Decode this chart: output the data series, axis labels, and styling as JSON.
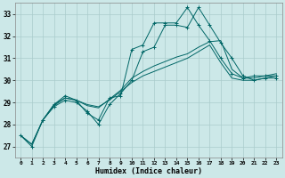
{
  "xlabel": "Humidex (Indice chaleur)",
  "bg_color": "#cce8e8",
  "grid_color": "#aacccc",
  "line_color": "#006666",
  "xlim": [
    -0.5,
    23.5
  ],
  "ylim": [
    26.5,
    33.5
  ],
  "xticks": [
    0,
    1,
    2,
    3,
    4,
    5,
    6,
    7,
    8,
    9,
    10,
    11,
    12,
    13,
    14,
    15,
    16,
    17,
    18,
    19,
    20,
    21,
    22,
    23
  ],
  "yticks": [
    27,
    28,
    29,
    30,
    31,
    32,
    33
  ],
  "series": [
    {
      "x": [
        0,
        1,
        2,
        3,
        4,
        5,
        6,
        7,
        8,
        9,
        10,
        11,
        12,
        13,
        14,
        15,
        16,
        17,
        18,
        19,
        20,
        21,
        22,
        23
      ],
      "y": [
        27.5,
        27.0,
        28.2,
        28.9,
        29.3,
        29.1,
        28.5,
        28.2,
        29.2,
        29.3,
        31.4,
        31.6,
        32.6,
        32.6,
        32.6,
        33.3,
        32.5,
        31.8,
        31.0,
        30.3,
        30.1,
        30.2,
        30.2,
        30.2
      ],
      "marker": true
    },
    {
      "x": [
        2,
        3,
        4,
        5,
        6,
        7,
        8,
        9,
        10,
        11,
        12,
        13,
        14,
        15,
        16,
        17,
        18,
        19,
        20,
        21,
        22,
        23
      ],
      "y": [
        28.2,
        28.8,
        29.1,
        29.0,
        28.6,
        28.0,
        28.9,
        29.4,
        30.0,
        31.3,
        31.5,
        32.5,
        32.5,
        32.4,
        33.3,
        32.5,
        31.7,
        31.0,
        30.2,
        30.0,
        30.1,
        30.1
      ],
      "marker": true
    },
    {
      "x": [
        0,
        1,
        2,
        3,
        4,
        5,
        6,
        7,
        8,
        9,
        10,
        11,
        12,
        13,
        14,
        15,
        16,
        17,
        18,
        19,
        20,
        21,
        22,
        23
      ],
      "y": [
        27.5,
        27.1,
        28.2,
        28.9,
        29.2,
        29.1,
        28.9,
        28.8,
        29.1,
        29.5,
        29.9,
        30.2,
        30.4,
        30.6,
        30.8,
        31.0,
        31.3,
        31.6,
        30.8,
        30.1,
        30.0,
        30.0,
        30.1,
        30.2
      ],
      "marker": false
    },
    {
      "x": [
        0,
        1,
        2,
        3,
        4,
        5,
        6,
        7,
        8,
        9,
        10,
        11,
        12,
        13,
        14,
        15,
        16,
        17,
        18,
        19,
        20,
        21,
        22,
        23
      ],
      "y": [
        27.5,
        27.1,
        28.2,
        28.85,
        29.2,
        29.1,
        28.85,
        28.75,
        29.15,
        29.55,
        30.1,
        30.4,
        30.65,
        30.85,
        31.05,
        31.2,
        31.5,
        31.75,
        31.8,
        30.5,
        30.1,
        30.1,
        30.2,
        30.3
      ],
      "marker": false
    }
  ]
}
